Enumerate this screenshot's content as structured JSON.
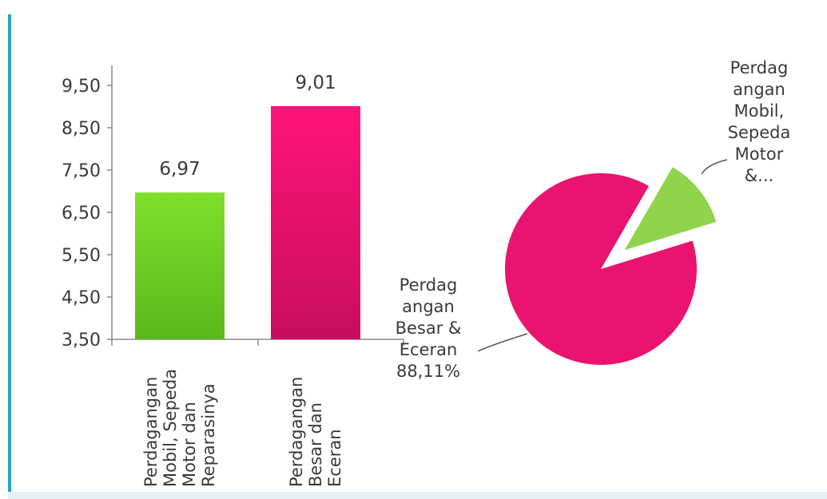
{
  "chart_data": [
    {
      "type": "bar",
      "categories": [
        "Perdagangan\nMobil, Sepeda\nMotor dan\nReparasinya",
        "Perdagangan\nBesar dan\nEceran"
      ],
      "values": [
        6.97,
        9.01
      ],
      "data_labels": [
        "6,97",
        "9,01"
      ],
      "colors": [
        "#6fd321",
        "#e8146f"
      ],
      "ylim": [
        3.5,
        9.5
      ],
      "yticks": [
        3.5,
        4.5,
        5.5,
        6.5,
        7.5,
        8.5,
        9.5
      ],
      "ytick_labels": [
        "3,50",
        "4,50",
        "5,50",
        "6,50",
        "7,50",
        "8,50",
        "9,50"
      ],
      "grid": false
    },
    {
      "type": "pie",
      "slices": [
        {
          "label": "Perdagangan Besar & Eceran",
          "value": 88.11,
          "color": "#e8146f",
          "label_text": "Perdag\nangan\nBesar &\nEceran\n88,11%"
        },
        {
          "label": "Perdagangan Mobil, Sepeda Motor & ...",
          "value": 11.89,
          "color": "#8fd44a",
          "label_text": "Perdag\nangan\nMobil,\nSepeda\nMotor\n&..."
        }
      ]
    }
  ]
}
